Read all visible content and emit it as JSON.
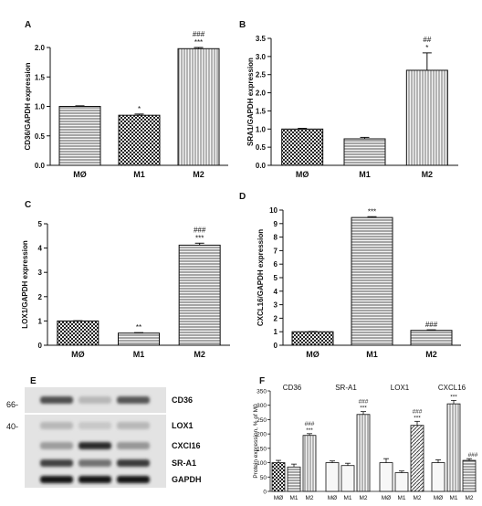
{
  "colors": {
    "ink": "#111111",
    "fill_light": "#f4f4f4",
    "blot_bg": "#e6e6e6",
    "blot_band": "#1e1e1e"
  },
  "chart_data": [
    {
      "panel": "A",
      "type": "bar",
      "categories": [
        "MØ",
        "M1",
        "M2"
      ],
      "values": [
        1.0,
        0.85,
        1.98
      ],
      "errors": [
        0.01,
        0.02,
        0.02
      ],
      "significance": [
        "",
        "*",
        "###\n***"
      ],
      "patterns": [
        "hstripe",
        "check",
        "vstripe"
      ],
      "ylabel": "CD36/GAPDH expression",
      "ylim": [
        0,
        2.0
      ],
      "yticks": [
        "0.0",
        "0.5",
        "1.0",
        "1.5",
        "2.0"
      ],
      "ytick_values": [
        0,
        0.5,
        1.0,
        1.5,
        2.0
      ]
    },
    {
      "panel": "B",
      "type": "bar",
      "categories": [
        "MØ",
        "M1",
        "M2"
      ],
      "values": [
        1.0,
        0.73,
        2.62
      ],
      "errors": [
        0.02,
        0.04,
        0.48
      ],
      "significance": [
        "",
        "",
        "##\n*"
      ],
      "patterns": [
        "check",
        "hstripe",
        "vstripe"
      ],
      "ylabel": "SRA1/GAPDH expression",
      "ylim": [
        0,
        3.5
      ],
      "yticks": [
        "0.0",
        "0.5",
        "1.0",
        "1.5",
        "2.0",
        "2.5",
        "3.0",
        "3.5"
      ],
      "ytick_values": [
        0,
        0.5,
        1.0,
        1.5,
        2.0,
        2.5,
        3.0,
        3.5
      ]
    },
    {
      "panel": "C",
      "type": "bar",
      "categories": [
        "MØ",
        "M1",
        "M2"
      ],
      "values": [
        1.0,
        0.5,
        4.12
      ],
      "errors": [
        0.01,
        0.02,
        0.08
      ],
      "significance": [
        "",
        "**",
        "###\n***"
      ],
      "patterns": [
        "check",
        "hstripe",
        "hstripe"
      ],
      "ylabel": "LOX1/GAPDH expression",
      "ylim": [
        0,
        5
      ],
      "yticks": [
        "0",
        "1",
        "2",
        "3",
        "4",
        "5"
      ],
      "ytick_values": [
        0,
        1,
        2,
        3,
        4,
        5
      ]
    },
    {
      "panel": "D",
      "type": "bar",
      "categories": [
        "MØ",
        "M1",
        "M2"
      ],
      "values": [
        1.0,
        9.45,
        1.1
      ],
      "errors": [
        0.02,
        0.06,
        0.04
      ],
      "significance": [
        "",
        "***",
        "###"
      ],
      "patterns": [
        "check",
        "hstripe",
        "hstripe"
      ],
      "ylabel": "CXCL16/GAPDH expression",
      "ylim": [
        0,
        10
      ],
      "yticks": [
        "0",
        "1",
        "2",
        "3",
        "4",
        "5",
        "6",
        "7",
        "8",
        "9",
        "10"
      ],
      "ytick_values": [
        0,
        1,
        2,
        3,
        4,
        5,
        6,
        7,
        8,
        9,
        10
      ]
    },
    {
      "panel": "F",
      "type": "bar",
      "ylabel": "Protein expression, % of M0",
      "ylim": [
        0,
        350
      ],
      "yticks": [
        "0",
        "50",
        "100",
        "150",
        "200",
        "250",
        "300",
        "350"
      ],
      "ytick_values": [
        0,
        50,
        100,
        150,
        200,
        250,
        300,
        350
      ],
      "groups": [
        {
          "name": "CD36",
          "categories": [
            "MØ",
            "M1",
            "M2"
          ],
          "values": [
            100,
            85,
            195
          ],
          "errors": [
            8,
            10,
            6
          ],
          "significance": [
            "",
            "",
            "###\n***"
          ],
          "patterns": [
            "check",
            "hstripe",
            "vstripe"
          ]
        },
        {
          "name": "SR-A1",
          "categories": [
            "MØ",
            "M1",
            "M2"
          ],
          "values": [
            100,
            90,
            268
          ],
          "errors": [
            6,
            8,
            10
          ],
          "significance": [
            "",
            "",
            "###\n***"
          ],
          "patterns": [
            "plain",
            "plain",
            "vstripe"
          ]
        },
        {
          "name": "LOX1",
          "categories": [
            "MØ",
            "M1",
            "M2"
          ],
          "values": [
            100,
            65,
            230
          ],
          "errors": [
            14,
            6,
            14
          ],
          "significance": [
            "",
            "",
            "###\n***"
          ],
          "patterns": [
            "plain",
            "plain",
            "diag"
          ]
        },
        {
          "name": "CXCL16",
          "categories": [
            "MØ",
            "M1",
            "M2"
          ],
          "values": [
            100,
            305,
            108
          ],
          "errors": [
            10,
            12,
            6
          ],
          "significance": [
            "",
            "***",
            "###"
          ],
          "patterns": [
            "plain",
            "vstripe",
            "hstripe"
          ]
        }
      ]
    }
  ],
  "blot": {
    "panel": "E",
    "markers": [
      "66-",
      "40-"
    ],
    "rows": [
      {
        "label": "CD36",
        "intensities": [
          0.72,
          0.22,
          0.68
        ]
      },
      {
        "label": "LOX1",
        "intensities": [
          0.22,
          0.15,
          0.22
        ]
      },
      {
        "label": "CXCl16",
        "intensities": [
          0.35,
          0.9,
          0.38
        ]
      },
      {
        "label": "SR-A1",
        "intensities": [
          0.78,
          0.55,
          0.82
        ]
      },
      {
        "label": "GAPDH",
        "intensities": [
          0.98,
          0.98,
          0.98
        ]
      }
    ]
  }
}
